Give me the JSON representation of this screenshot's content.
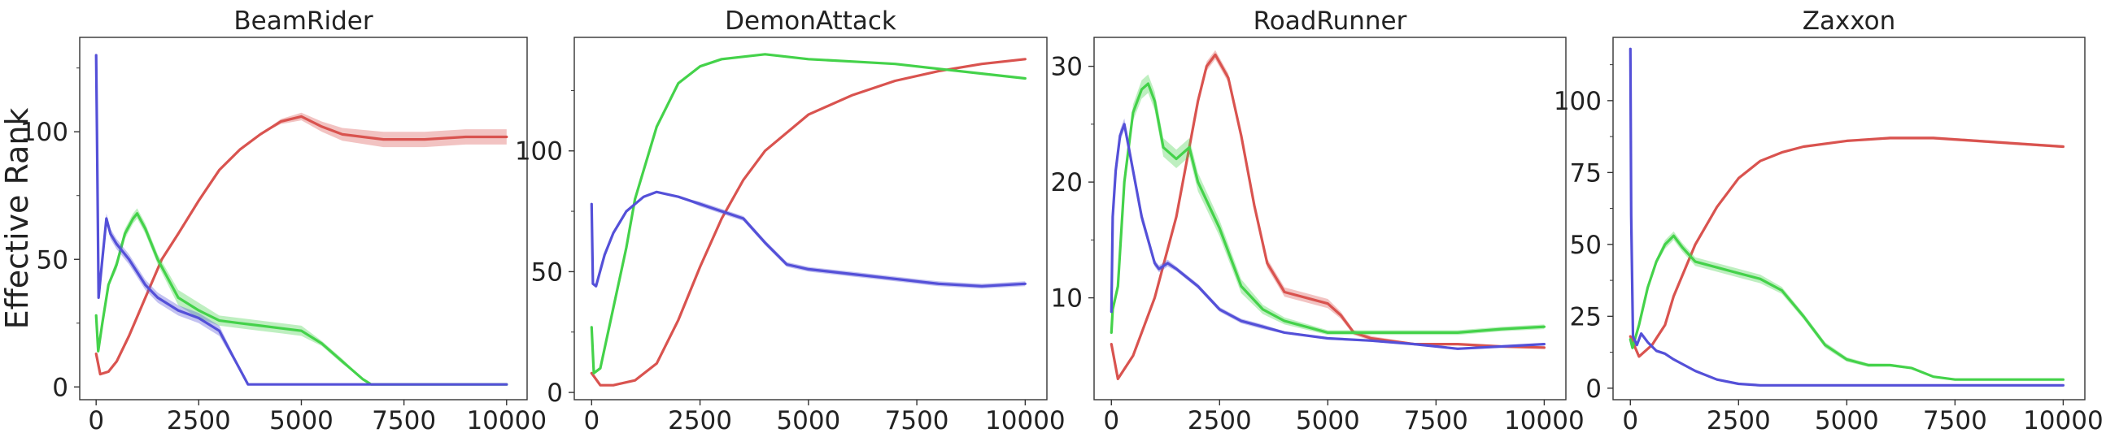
{
  "chart_data": [
    {
      "type": "line",
      "title": "BeamRider",
      "ylabel": "Effective Rank",
      "xlabel": "",
      "xlim": [
        -400,
        10500
      ],
      "ylim": [
        -5,
        137
      ],
      "xticks": [
        0,
        2500,
        5000,
        7500,
        10000
      ],
      "xtick_labels": [
        "0",
        "2500",
        "5000",
        "7500",
        "10000"
      ],
      "yticks": [
        0,
        50,
        100
      ],
      "ytick_labels": [
        "0",
        "50",
        "100"
      ],
      "series": [
        {
          "color": "#d9534f",
          "x": [
            0,
            100,
            300,
            500,
            800,
            1200,
            1600,
            2000,
            2500,
            3000,
            3500,
            4000,
            4500,
            5000,
            5500,
            6000,
            7000,
            8000,
            9000,
            10000
          ],
          "y": [
            13,
            5,
            6,
            10,
            20,
            35,
            50,
            60,
            73,
            85,
            93,
            99,
            104,
            106,
            102,
            99,
            97,
            97,
            98,
            98
          ],
          "band": [
            0,
            0,
            0,
            0,
            0,
            0,
            0,
            0,
            0,
            0,
            0,
            0,
            1,
            1.5,
            2,
            2.5,
            3,
            3,
            3,
            3
          ]
        },
        {
          "color": "#44d24a",
          "x": [
            0,
            50,
            150,
            300,
            500,
            700,
            900,
            1000,
            1200,
            1500,
            2000,
            2500,
            3000,
            3500,
            4000,
            4500,
            5000,
            5500,
            6000,
            6500,
            6700,
            10000
          ],
          "y": [
            28,
            14,
            25,
            40,
            48,
            60,
            66,
            68,
            62,
            50,
            35,
            30,
            26,
            25,
            24,
            23,
            22,
            17,
            10,
            3,
            1,
            1
          ],
          "band": [
            0,
            0,
            1,
            1,
            2,
            2,
            2,
            2,
            2,
            2,
            3,
            3,
            2,
            2,
            2,
            2,
            2,
            1,
            1,
            0,
            0,
            0
          ]
        },
        {
          "color": "#5450d8",
          "x": [
            0,
            20,
            60,
            150,
            250,
            350,
            500,
            800,
            1200,
            1500,
            2000,
            2500,
            3000,
            3400,
            3700,
            10000
          ],
          "y": [
            130,
            100,
            35,
            50,
            66,
            60,
            56,
            50,
            40,
            35,
            30,
            27,
            22,
            10,
            1,
            1
          ],
          "band": [
            0,
            0,
            0,
            2,
            2,
            2,
            2,
            2,
            2,
            2,
            2,
            2,
            2,
            1,
            0,
            0
          ]
        }
      ]
    },
    {
      "type": "line",
      "title": "DemonAttack",
      "ylabel": "",
      "xlabel": "",
      "xlim": [
        -400,
        10500
      ],
      "ylim": [
        -3,
        147
      ],
      "xticks": [
        0,
        2500,
        5000,
        7500,
        10000
      ],
      "xtick_labels": [
        "0",
        "2500",
        "5000",
        "7500",
        "10000"
      ],
      "yticks": [
        0,
        50,
        100
      ],
      "ytick_labels": [
        "0",
        "50",
        "100"
      ],
      "series": [
        {
          "color": "#d9534f",
          "x": [
            0,
            200,
            500,
            1000,
            1500,
            2000,
            2500,
            3000,
            3500,
            4000,
            5000,
            6000,
            7000,
            8000,
            9000,
            10000
          ],
          "y": [
            8,
            3,
            3,
            5,
            12,
            30,
            52,
            72,
            88,
            100,
            115,
            123,
            129,
            133,
            136,
            138
          ],
          "band": [
            0,
            0,
            0,
            0,
            0,
            0,
            0,
            0,
            0,
            0,
            0,
            0,
            0,
            0,
            0,
            0
          ]
        },
        {
          "color": "#44d24a",
          "x": [
            0,
            50,
            200,
            500,
            800,
            1000,
            1500,
            2000,
            2500,
            3000,
            3500,
            4000,
            4500,
            5000,
            6000,
            7000,
            8000,
            9000,
            10000
          ],
          "y": [
            27,
            8,
            10,
            35,
            60,
            80,
            110,
            128,
            135,
            138,
            139,
            140,
            139,
            138,
            137,
            136,
            134,
            132,
            130
          ],
          "band": [
            0,
            0,
            0,
            0,
            0,
            0,
            0,
            0,
            0,
            0,
            0,
            0,
            0,
            0,
            0,
            0,
            0,
            0,
            0
          ]
        },
        {
          "color": "#5450d8",
          "x": [
            0,
            30,
            100,
            300,
            500,
            800,
            1200,
            1500,
            2000,
            2500,
            3000,
            3500,
            4000,
            4500,
            5000,
            6000,
            7000,
            8000,
            9000,
            10000
          ],
          "y": [
            78,
            45,
            44,
            57,
            66,
            75,
            81,
            83,
            81,
            78,
            75,
            72,
            62,
            53,
            51,
            49,
            47,
            45,
            44,
            45
          ],
          "band": [
            0,
            0,
            0,
            0,
            0,
            0,
            0,
            0,
            0,
            1,
            1,
            1,
            1,
            1,
            1,
            1,
            1,
            1,
            1,
            1
          ]
        }
      ]
    },
    {
      "type": "line",
      "title": "RoadRunner",
      "ylabel": "",
      "xlabel": "",
      "xlim": [
        -400,
        10500
      ],
      "ylim": [
        1.2,
        32.5
      ],
      "xticks": [
        0,
        2500,
        5000,
        7500,
        10000
      ],
      "xtick_labels": [
        "0",
        "2500",
        "5000",
        "7500",
        "10000"
      ],
      "yticks": [
        10,
        20,
        30
      ],
      "ytick_labels": [
        "10",
        "20",
        "30"
      ],
      "series": [
        {
          "color": "#d9534f",
          "x": [
            0,
            150,
            500,
            1000,
            1500,
            1800,
            2000,
            2200,
            2400,
            2700,
            3000,
            3300,
            3600,
            4000,
            4500,
            5000,
            5300,
            5600,
            6000,
            7000,
            8000,
            9000,
            10000
          ],
          "y": [
            6,
            3,
            5,
            10,
            17,
            23,
            27,
            30,
            31,
            29,
            24,
            18,
            13,
            10.5,
            10,
            9.5,
            8.5,
            7,
            6.5,
            6,
            6,
            5.8,
            5.7
          ],
          "band": [
            0,
            0,
            0,
            0,
            0.2,
            0.3,
            0.4,
            0.4,
            0.4,
            0.4,
            0.4,
            0.4,
            0.4,
            0.4,
            0.4,
            0.4,
            0.3,
            0.2,
            0.2,
            0.1,
            0.1,
            0.1,
            0.1
          ]
        },
        {
          "color": "#44d24a",
          "x": [
            0,
            30,
            150,
            300,
            500,
            700,
            850,
            1000,
            1200,
            1500,
            1800,
            2000,
            2500,
            3000,
            3500,
            4000,
            5000,
            6000,
            7000,
            8000,
            9000,
            10000
          ],
          "y": [
            7,
            9,
            11,
            20,
            26,
            28,
            28.5,
            27,
            23,
            22,
            23,
            20,
            16,
            11,
            9,
            8,
            7,
            7,
            7,
            7,
            7.3,
            7.5
          ],
          "band": [
            0,
            0,
            0.5,
            0.6,
            0.7,
            0.8,
            0.8,
            0.8,
            0.8,
            0.8,
            0.8,
            0.8,
            0.7,
            0.6,
            0.4,
            0.3,
            0.2,
            0.2,
            0.2,
            0.2,
            0.2,
            0.2
          ]
        },
        {
          "color": "#5450d8",
          "x": [
            0,
            30,
            100,
            200,
            300,
            400,
            500,
            700,
            1000,
            1100,
            1300,
            1500,
            2000,
            2500,
            3000,
            3500,
            4000,
            5000,
            6000,
            7000,
            8000,
            9000,
            10000
          ],
          "y": [
            8.8,
            17,
            21,
            24,
            25,
            23,
            21,
            17,
            13,
            12.5,
            13,
            12.5,
            11,
            9,
            8,
            7.5,
            7,
            6.5,
            6.3,
            6,
            5.6,
            5.8,
            6
          ],
          "band": [
            0,
            0,
            0.3,
            0.5,
            0.5,
            0.5,
            0.5,
            0.5,
            0.3,
            0.3,
            0.3,
            0.2,
            0.2,
            0.2,
            0.2,
            0.2,
            0.1,
            0.1,
            0.1,
            0.1,
            0.1,
            0.1,
            0.1
          ]
        }
      ]
    },
    {
      "type": "line",
      "title": "Zaxxon",
      "ylabel": "",
      "xlabel": "",
      "xlim": [
        -400,
        10500
      ],
      "ylim": [
        -4,
        122
      ],
      "xticks": [
        0,
        2500,
        5000,
        7500,
        10000
      ],
      "xtick_labels": [
        "0",
        "2500",
        "5000",
        "7500",
        "10000"
      ],
      "yticks": [
        0,
        25,
        50,
        75,
        100
      ],
      "ytick_labels": [
        "0",
        "25",
        "50",
        "75",
        "100"
      ],
      "series": [
        {
          "color": "#d9534f",
          "x": [
            0,
            200,
            500,
            800,
            1000,
            1500,
            2000,
            2500,
            3000,
            3500,
            4000,
            5000,
            6000,
            7000,
            8000,
            9000,
            10000
          ],
          "y": [
            18,
            11,
            15,
            22,
            32,
            50,
            63,
            73,
            79,
            82,
            84,
            86,
            87,
            87,
            86,
            85,
            84
          ],
          "band": [
            0,
            0,
            0,
            0,
            0,
            0,
            0,
            0,
            0,
            0,
            0,
            0,
            0.5,
            0.5,
            0.5,
            0.5,
            0.5
          ]
        },
        {
          "color": "#44d24a",
          "x": [
            0,
            50,
            200,
            400,
            600,
            800,
            1000,
            1200,
            1500,
            2000,
            2500,
            3000,
            3500,
            4000,
            4500,
            5000,
            5500,
            6000,
            6500,
            7000,
            7500,
            8000,
            9000,
            10000
          ],
          "y": [
            17,
            14,
            22,
            35,
            44,
            50,
            53,
            49,
            44,
            42,
            40,
            38,
            34,
            25,
            15,
            10,
            8,
            8,
            7,
            4,
            3,
            3,
            3,
            3
          ],
          "band": [
            0,
            0,
            1,
            1,
            1,
            1.5,
            1.5,
            1.5,
            1.5,
            1.5,
            1.5,
            1.5,
            1.2,
            1,
            1,
            0.8,
            0.6,
            0.5,
            0.4,
            0.3,
            0.2,
            0.2,
            0.2,
            0.2
          ]
        },
        {
          "color": "#5450d8",
          "x": [
            0,
            20,
            60,
            150,
            250,
            400,
            600,
            800,
            1000,
            1500,
            2000,
            2500,
            3000,
            10000
          ],
          "y": [
            118,
            60,
            18,
            15,
            19,
            16,
            13,
            12,
            10,
            6,
            3,
            1.5,
            1,
            1
          ],
          "band": [
            0,
            0,
            0,
            0.5,
            0.5,
            0.5,
            0.5,
            0.5,
            0.5,
            0.3,
            0.2,
            0,
            0,
            0
          ]
        }
      ]
    }
  ]
}
